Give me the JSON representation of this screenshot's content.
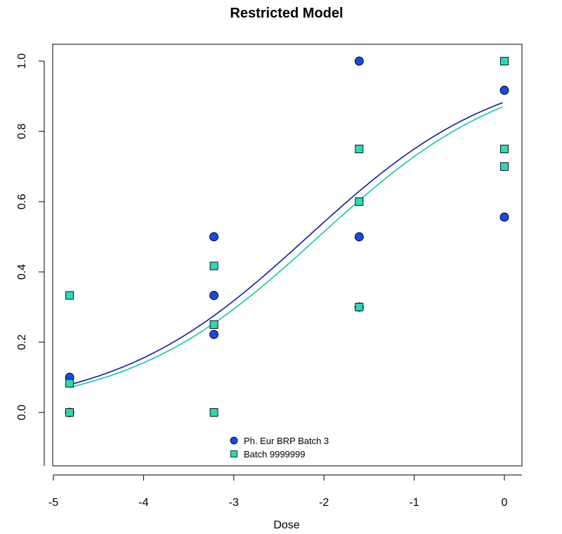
{
  "chart_data": {
    "type": "scatter",
    "title": "Restricted Model",
    "xlabel": "Dose",
    "ylabel": "",
    "xlim": [
      -5,
      0.2
    ],
    "ylim": [
      -0.15,
      1.05
    ],
    "x_ticks": [
      -5,
      -4,
      -3,
      -2,
      -1,
      0
    ],
    "y_ticks": [
      0.0,
      0.2,
      0.4,
      0.6,
      0.8,
      1.0
    ],
    "x_tick_labels": [
      "-5",
      "-4",
      "-3",
      "-2",
      "-1",
      "0"
    ],
    "y_tick_labels": [
      "0.0",
      "0.2",
      "0.4",
      "0.6",
      "0.8",
      "1.0"
    ],
    "legend_position": "bottom-center",
    "grid": false,
    "series": [
      {
        "name": "Ph. Eur BRP Batch 3",
        "marker": "circle",
        "color": "#1a47e6",
        "line_color": "#0a1fa3",
        "points": [
          {
            "x": -4.82,
            "y": 0.1
          },
          {
            "x": -4.82,
            "y": 0.0
          },
          {
            "x": -3.22,
            "y": 0.5
          },
          {
            "x": -3.22,
            "y": 0.333
          },
          {
            "x": -3.22,
            "y": 0.222
          },
          {
            "x": -1.61,
            "y": 1.0
          },
          {
            "x": -1.61,
            "y": 0.5
          },
          {
            "x": -1.61,
            "y": 0.3
          },
          {
            "x": 0.0,
            "y": 0.917
          },
          {
            "x": 0.0,
            "y": 0.556
          }
        ],
        "curve": {
          "x0": -2.18,
          "slope": 0.93,
          "upper": 1.0
        }
      },
      {
        "name": "Batch 9999999",
        "marker": "square",
        "color": "#2ed8b4",
        "line_color": "#12c8a8",
        "points": [
          {
            "x": -4.82,
            "y": 0.333
          },
          {
            "x": -4.82,
            "y": 0.083
          },
          {
            "x": -4.82,
            "y": 0.0
          },
          {
            "x": -3.22,
            "y": 0.417
          },
          {
            "x": -3.22,
            "y": 0.25
          },
          {
            "x": -3.22,
            "y": 0.0
          },
          {
            "x": -1.61,
            "y": 0.75
          },
          {
            "x": -1.61,
            "y": 0.6
          },
          {
            "x": -1.61,
            "y": 0.3
          },
          {
            "x": 0.0,
            "y": 1.0
          },
          {
            "x": 0.0,
            "y": 0.75
          },
          {
            "x": 0.0,
            "y": 0.7
          }
        ],
        "curve": {
          "x0": -2.06,
          "slope": 0.93,
          "upper": 1.0
        }
      }
    ]
  }
}
